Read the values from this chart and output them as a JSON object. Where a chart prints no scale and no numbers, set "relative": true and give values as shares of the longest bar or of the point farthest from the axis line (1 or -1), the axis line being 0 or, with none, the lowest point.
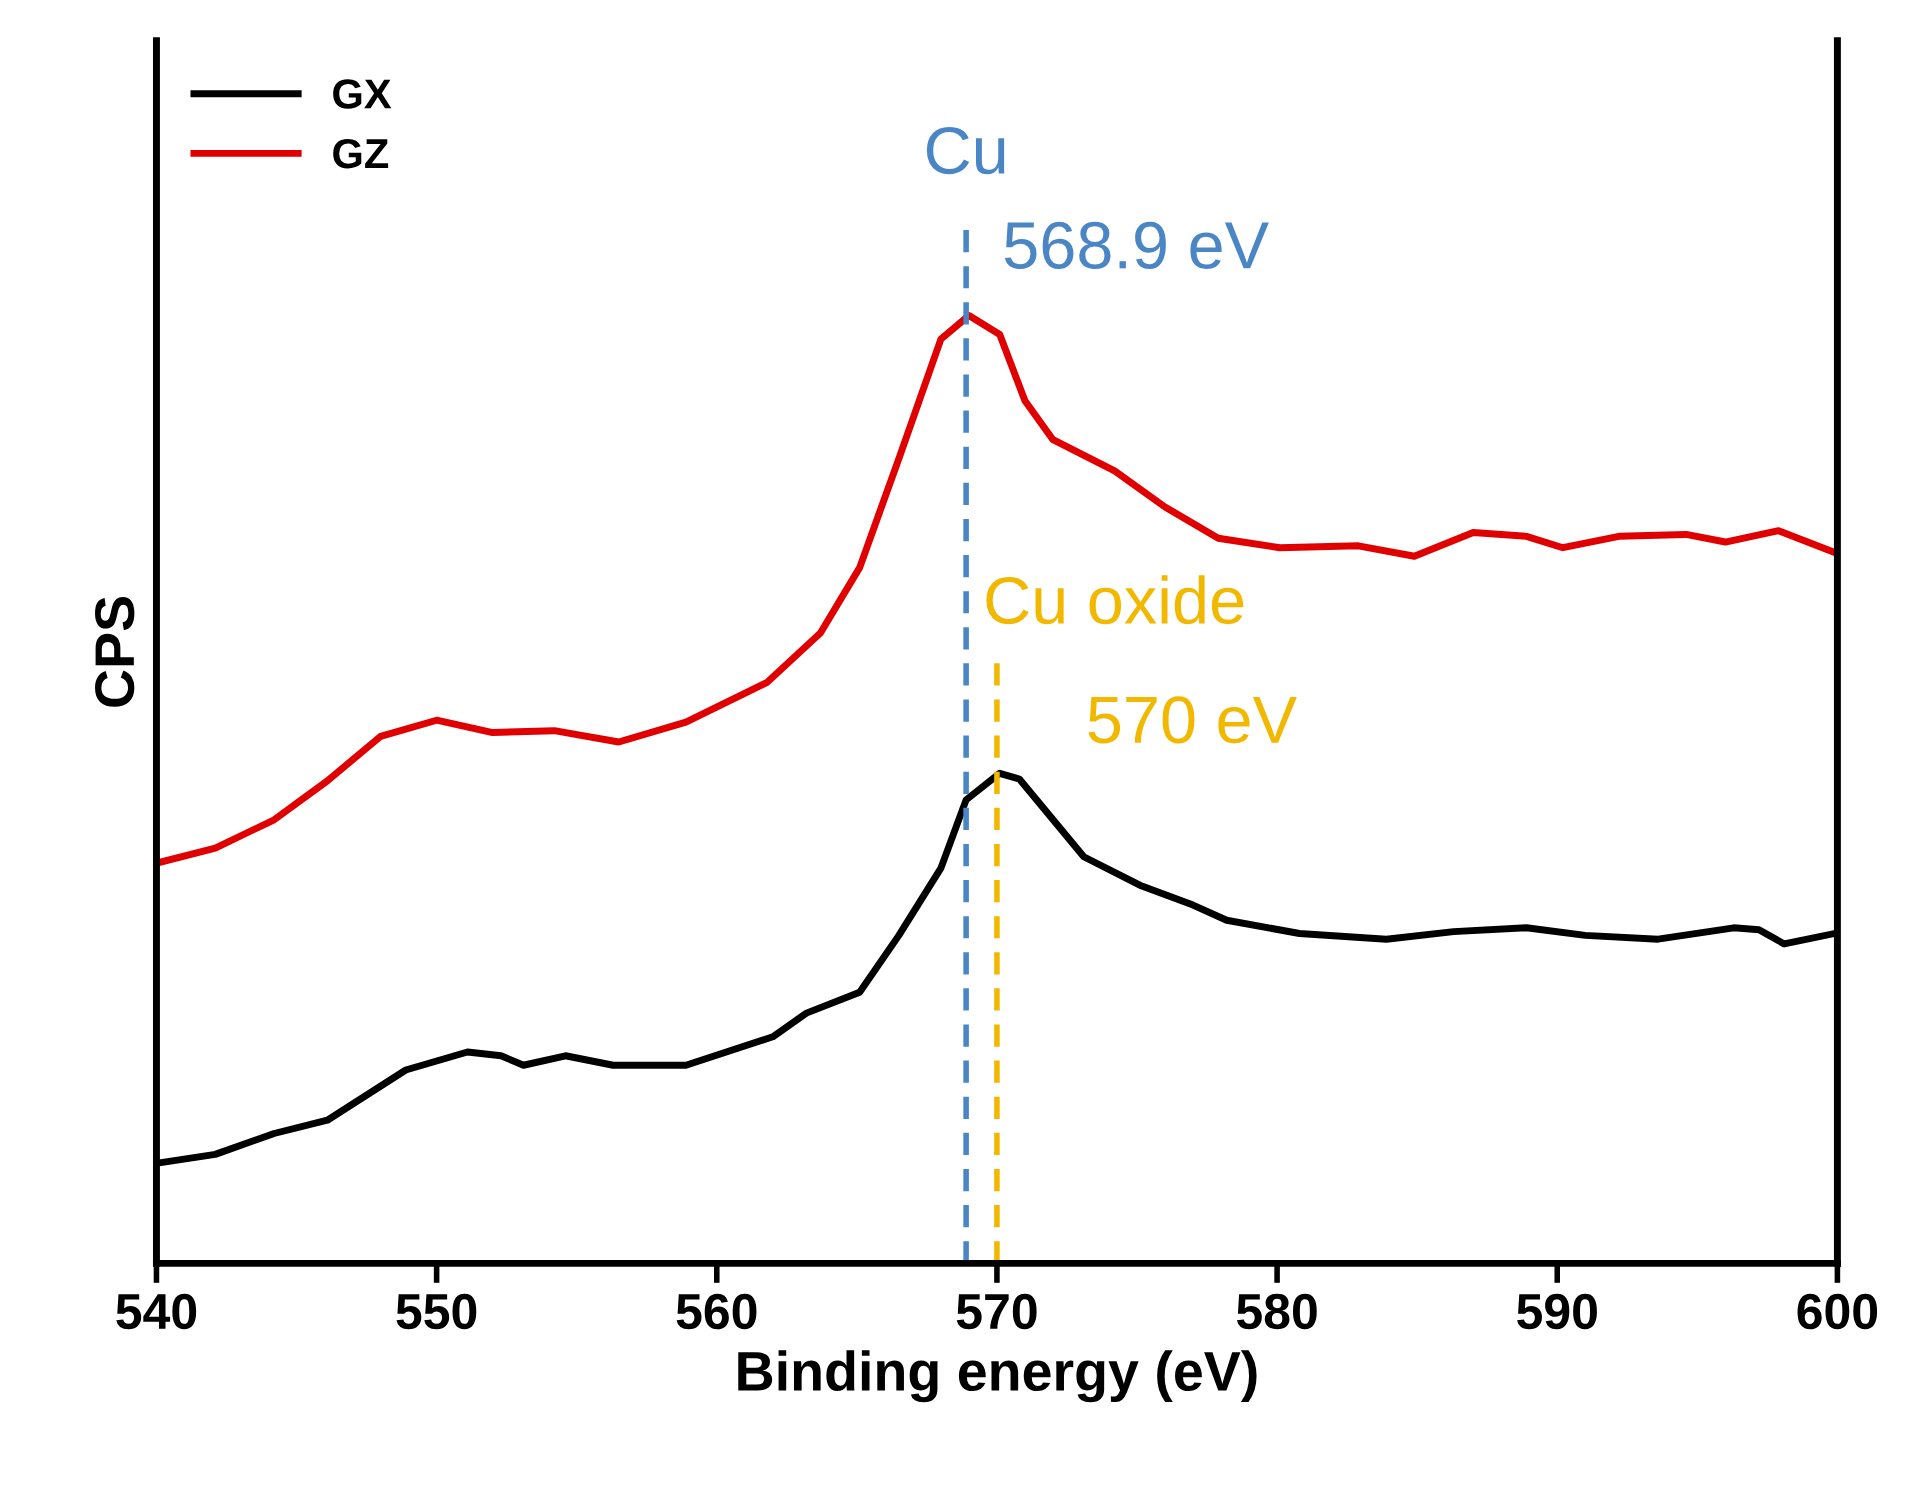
{
  "chart_data": {
    "type": "line",
    "relative": true,
    "xlabel": "Binding energy (eV)",
    "ylabel": "CPS",
    "xlim": [
      540,
      600
    ],
    "xticks": [
      540,
      550,
      560,
      570,
      580,
      590,
      600
    ],
    "tick_labels": "x",
    "legend": "top left",
    "grid": false,
    "line_style": "solid",
    "marker": "none",
    "series": [
      {
        "name": "GX",
        "color": "#000000",
        "x": [
          540.1,
          542.1,
          544.2,
          546.1,
          548.9,
          551.1,
          552.3,
          553.1,
          554.6,
          556.3,
          558.9,
          562.0,
          563.2,
          565.1,
          566.5,
          568.0,
          568.9,
          570.1,
          570.8,
          573.1,
          575.1,
          577.0,
          578.2,
          580.8,
          583.9,
          586.3,
          588.9,
          591.0,
          593.6,
          596.3,
          597.2,
          598.1,
          599.9
        ],
        "values": [
          0.106,
          0.115,
          0.137,
          0.151,
          0.204,
          0.223,
          0.219,
          0.209,
          0.219,
          0.209,
          0.209,
          0.239,
          0.264,
          0.286,
          0.346,
          0.417,
          0.489,
          0.517,
          0.511,
          0.429,
          0.399,
          0.378,
          0.362,
          0.348,
          0.342,
          0.35,
          0.354,
          0.346,
          0.342,
          0.354,
          0.352,
          0.337,
          0.348
        ]
      },
      {
        "name": "GZ",
        "color": "#e00000",
        "x": [
          540.1,
          542.1,
          544.2,
          546.1,
          548.0,
          550.0,
          552.0,
          554.2,
          556.5,
          558.9,
          561.8,
          563.7,
          565.1,
          566.5,
          568.0,
          569.0,
          570.1,
          571.0,
          572.0,
          574.2,
          576.0,
          577.9,
          580.1,
          582.9,
          584.9,
          587.0,
          588.9,
          590.2,
          592.2,
          594.6,
          596.0,
          597.9,
          599.9
        ],
        "values": [
          0.423,
          0.438,
          0.468,
          0.509,
          0.556,
          0.573,
          0.56,
          0.562,
          0.55,
          0.571,
          0.613,
          0.665,
          0.734,
          0.849,
          0.975,
          1.0,
          0.98,
          0.91,
          0.869,
          0.836,
          0.798,
          0.765,
          0.755,
          0.757,
          0.746,
          0.771,
          0.767,
          0.755,
          0.767,
          0.769,
          0.761,
          0.773,
          0.75
        ]
      }
    ],
    "ref_lines": [
      {
        "axis": "x",
        "value": 568.9,
        "color": "#4a86c5",
        "line_style": "dashed",
        "label": "Cu"
      },
      {
        "axis": "x",
        "value": 570,
        "color": "#f2b800",
        "line_style": "dashed",
        "label": "Cu oxide"
      }
    ],
    "annotations": [
      "568.9 eV",
      "570 eV"
    ]
  }
}
